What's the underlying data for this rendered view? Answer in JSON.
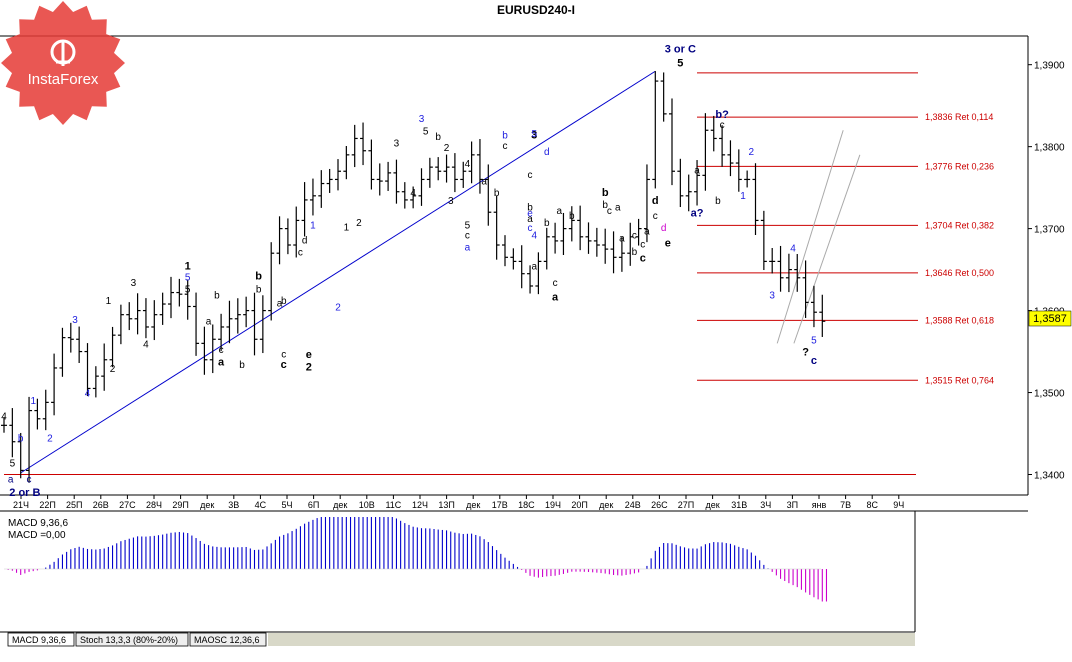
{
  "window": {
    "title": "EURUSD240-I"
  },
  "chart_data": [
    {
      "type": "candlestick",
      "title": "EURUSD240-I",
      "symbol": "EURUSD",
      "timeframe": "H4",
      "ylim": [
        1.3375,
        1.3935
      ],
      "y_ticks": [
        "1,3400",
        "1,3500",
        "1,3600",
        "1,3700",
        "1,3800",
        "1,3900"
      ],
      "x_ticks": [
        "21Ч",
        "22П",
        "25П",
        "26В",
        "27С",
        "28Ч",
        "29П",
        "дек",
        "3В",
        "4С",
        "5Ч",
        "6П",
        "дек",
        "10В",
        "11С",
        "12Ч",
        "13П",
        "дек",
        "17В",
        "18С",
        "19Ч",
        "20П",
        "дек",
        "24В",
        "26С",
        "27П",
        "дек",
        "31В",
        "3Ч",
        "3П",
        "янв",
        "7В",
        "8С",
        "9Ч"
      ],
      "last_price": "1,3587",
      "price_path": [
        [
          0,
          1.346
        ],
        [
          1,
          1.344
        ],
        [
          2,
          1.3405
        ],
        [
          3,
          1.3478
        ],
        [
          4,
          1.3468
        ],
        [
          5,
          1.3488
        ],
        [
          6,
          1.353
        ],
        [
          7,
          1.3567
        ],
        [
          8,
          1.3565
        ],
        [
          9,
          1.355
        ],
        [
          10,
          1.3505
        ],
        [
          11,
          1.352
        ],
        [
          12,
          1.354
        ],
        [
          13,
          1.357
        ],
        [
          14,
          1.3595
        ],
        [
          15,
          1.359
        ],
        [
          16,
          1.36
        ],
        [
          17,
          1.358
        ],
        [
          18,
          1.3595
        ],
        [
          19,
          1.3608
        ],
        [
          20,
          1.3622
        ],
        [
          21,
          1.362
        ],
        [
          22,
          1.3605
        ],
        [
          23,
          1.356
        ],
        [
          24,
          1.354
        ],
        [
          25,
          1.3565
        ],
        [
          26,
          1.358
        ],
        [
          27,
          1.359
        ],
        [
          28,
          1.3595
        ],
        [
          29,
          1.36
        ],
        [
          30,
          1.3565
        ],
        [
          31,
          1.36
        ],
        [
          32,
          1.367
        ],
        [
          33,
          1.37
        ],
        [
          34,
          1.368
        ],
        [
          35,
          1.371
        ],
        [
          36,
          1.3735
        ],
        [
          37,
          1.374
        ],
        [
          38,
          1.3755
        ],
        [
          39,
          1.376
        ],
        [
          40,
          1.377
        ],
        [
          41,
          1.379
        ],
        [
          42,
          1.381
        ],
        [
          43,
          1.3795
        ],
        [
          44,
          1.376
        ],
        [
          45,
          1.3758
        ],
        [
          46,
          1.3768
        ],
        [
          47,
          1.3745
        ],
        [
          48,
          1.3735
        ],
        [
          49,
          1.374
        ],
        [
          50,
          1.376
        ],
        [
          51,
          1.3775
        ],
        [
          52,
          1.377
        ],
        [
          53,
          1.3775
        ],
        [
          54,
          1.376
        ],
        [
          55,
          1.377
        ],
        [
          56,
          1.379
        ],
        [
          57,
          1.376
        ],
        [
          58,
          1.372
        ],
        [
          59,
          1.368
        ],
        [
          60,
          1.3665
        ],
        [
          61,
          1.366
        ],
        [
          62,
          1.3645
        ],
        [
          63,
          1.363
        ],
        [
          64,
          1.366
        ],
        [
          65,
          1.369
        ],
        [
          66,
          1.3685
        ],
        [
          67,
          1.37
        ],
        [
          68,
          1.371
        ],
        [
          69,
          1.369
        ],
        [
          70,
          1.3685
        ],
        [
          71,
          1.368
        ],
        [
          72,
          1.3675
        ],
        [
          73,
          1.3665
        ],
        [
          74,
          1.367
        ],
        [
          75,
          1.369
        ],
        [
          76,
          1.37
        ],
        [
          77,
          1.376
        ],
        [
          78,
          1.388
        ],
        [
          79,
          1.384
        ],
        [
          80,
          1.377
        ],
        [
          81,
          1.374
        ],
        [
          82,
          1.3745
        ],
        [
          83,
          1.3765
        ],
        [
          84,
          1.382
        ],
        [
          85,
          1.381
        ],
        [
          86,
          1.379
        ],
        [
          87,
          1.378
        ],
        [
          88,
          1.376
        ],
        [
          89,
          1.376
        ],
        [
          90,
          1.371
        ],
        [
          91,
          1.366
        ],
        [
          92,
          1.366
        ],
        [
          93,
          1.364
        ],
        [
          94,
          1.365
        ],
        [
          95,
          1.364
        ],
        [
          96,
          1.361
        ],
        [
          97,
          1.3598
        ],
        [
          98,
          1.3587
        ]
      ],
      "levels": [
        {
          "price": 1.3836,
          "label": "1,3836 Ret 0,114"
        },
        {
          "price": 1.3776,
          "label": "1,3776 Ret 0,236"
        },
        {
          "price": 1.3704,
          "label": "1,3704 Ret 0,382"
        },
        {
          "price": 1.3646,
          "label": "1,3646 Ret 0,500"
        },
        {
          "price": 1.3588,
          "label": "1,3588 Ret 0,618"
        },
        {
          "price": 1.3515,
          "label": "1,3515 Ret 0,764"
        }
      ],
      "support_level": 1.34,
      "top_level": 1.389,
      "trendline": [
        [
          2,
          1.3402
        ],
        [
          78,
          1.3892
        ]
      ],
      "channel_lines": [
        [
          [
            92.6,
            1.356
          ],
          [
            100.5,
            1.382
          ]
        ],
        [
          [
            94.6,
            1.356
          ],
          [
            102.5,
            1.379
          ]
        ]
      ],
      "wave_labels": [
        {
          "i": 0,
          "p": 1.3467,
          "t": "4",
          "c": "black"
        },
        {
          "i": 2,
          "p": 1.344,
          "t": "b",
          "c": "blue"
        },
        {
          "i": 1,
          "p": 1.341,
          "t": "5",
          "c": "black"
        },
        {
          "i": 0.8,
          "p": 1.339,
          "t": "a",
          "c": "navy"
        },
        {
          "i": 3,
          "p": 1.339,
          "t": "c",
          "c": "navy"
        },
        {
          "i": 2.5,
          "p": 1.3374,
          "t": "2 or B",
          "c": "navy",
          "bold": true
        },
        {
          "i": 3.5,
          "p": 1.3486,
          "t": "1",
          "c": "blue"
        },
        {
          "i": 5.5,
          "p": 1.344,
          "t": "2",
          "c": "blue"
        },
        {
          "i": 8.5,
          "p": 1.3585,
          "t": "3",
          "c": "blue"
        },
        {
          "i": 10,
          "p": 1.3495,
          "t": "4",
          "c": "blue"
        },
        {
          "i": 13,
          "p": 1.3525,
          "t": "2",
          "c": "black"
        },
        {
          "i": 12.5,
          "p": 1.3608,
          "t": "1",
          "c": "black"
        },
        {
          "i": 15.5,
          "p": 1.363,
          "t": "3",
          "c": "black"
        },
        {
          "i": 17,
          "p": 1.3555,
          "t": "4",
          "c": "black"
        },
        {
          "i": 22,
          "p": 1.365,
          "t": "1",
          "c": "black",
          "bold": true
        },
        {
          "i": 22,
          "p": 1.3637,
          "t": "5",
          "c": "blue"
        },
        {
          "i": 22,
          "p": 1.3622,
          "t": "5",
          "c": "black"
        },
        {
          "i": 25.5,
          "p": 1.3615,
          "t": "b",
          "c": "black"
        },
        {
          "i": 24.5,
          "p": 1.3583,
          "t": "a",
          "c": "black"
        },
        {
          "i": 26,
          "p": 1.3548,
          "t": "c",
          "c": "black"
        },
        {
          "i": 26,
          "p": 1.3533,
          "t": "a",
          "c": "black",
          "bold": true
        },
        {
          "i": 28.5,
          "p": 1.353,
          "t": "b",
          "c": "black"
        },
        {
          "i": 30.5,
          "p": 1.3638,
          "t": "b",
          "c": "black",
          "bold": true
        },
        {
          "i": 30.5,
          "p": 1.3622,
          "t": "b",
          "c": "black"
        },
        {
          "i": 33,
          "p": 1.3605,
          "t": "a",
          "c": "black"
        },
        {
          "i": 33.5,
          "p": 1.3608,
          "t": "b",
          "c": "black"
        },
        {
          "i": 33.5,
          "p": 1.3543,
          "t": "c",
          "c": "black"
        },
        {
          "i": 33.5,
          "p": 1.353,
          "t": "c",
          "c": "black",
          "bold": true
        },
        {
          "i": 36.5,
          "p": 1.3542,
          "t": "e",
          "c": "black",
          "bold": true
        },
        {
          "i": 36.5,
          "p": 1.3527,
          "t": "2",
          "c": "black",
          "bold": true
        },
        {
          "i": 35.5,
          "p": 1.3667,
          "t": "c",
          "c": "black"
        },
        {
          "i": 36,
          "p": 1.3682,
          "t": "d",
          "c": "black"
        },
        {
          "i": 37,
          "p": 1.37,
          "t": "1",
          "c": "blue"
        },
        {
          "i": 40,
          "p": 1.36,
          "t": "2",
          "c": "blue"
        },
        {
          "i": 41,
          "p": 1.3698,
          "t": "1",
          "c": "black"
        },
        {
          "i": 42.5,
          "p": 1.3703,
          "t": "2",
          "c": "black"
        },
        {
          "i": 47,
          "p": 1.38,
          "t": "3",
          "c": "black"
        },
        {
          "i": 50,
          "p": 1.383,
          "t": "3",
          "c": "blue"
        },
        {
          "i": 50.5,
          "p": 1.3815,
          "t": "5",
          "c": "black"
        },
        {
          "i": 52,
          "p": 1.3808,
          "t": "b",
          "c": "black"
        },
        {
          "i": 53,
          "p": 1.3795,
          "t": "2",
          "c": "black"
        },
        {
          "i": 49,
          "p": 1.374,
          "t": "4",
          "c": "black"
        },
        {
          "i": 55.5,
          "p": 1.3775,
          "t": "4",
          "c": "black"
        },
        {
          "i": 53.5,
          "p": 1.373,
          "t": "3",
          "c": "black"
        },
        {
          "i": 55.5,
          "p": 1.37,
          "t": "5",
          "c": "black"
        },
        {
          "i": 55.5,
          "p": 1.3688,
          "t": "c",
          "c": "black"
        },
        {
          "i": 55.5,
          "p": 1.3673,
          "t": "a",
          "c": "blue"
        },
        {
          "i": 57.5,
          "p": 1.3754,
          "t": "a",
          "c": "black"
        },
        {
          "i": 59,
          "p": 1.374,
          "t": "b",
          "c": "black"
        },
        {
          "i": 60,
          "p": 1.381,
          "t": "b",
          "c": "blue"
        },
        {
          "i": 60,
          "p": 1.3797,
          "t": "c",
          "c": "black"
        },
        {
          "i": 63.5,
          "p": 1.381,
          "t": "3",
          "c": "black",
          "bold": true
        },
        {
          "i": 63.5,
          "p": 1.3812,
          "t": "5",
          "c": "blue"
        },
        {
          "i": 65,
          "p": 1.379,
          "t": "d",
          "c": "blue"
        },
        {
          "i": 63,
          "p": 1.3762,
          "t": "c",
          "c": "black"
        },
        {
          "i": 63,
          "p": 1.3708,
          "t": "a",
          "c": "black"
        },
        {
          "i": 63,
          "p": 1.3722,
          "t": "b",
          "c": "black"
        },
        {
          "i": 63,
          "p": 1.3715,
          "t": "e",
          "c": "blue"
        },
        {
          "i": 63,
          "p": 1.3697,
          "t": "c",
          "c": "blue"
        },
        {
          "i": 63.5,
          "p": 1.3688,
          "t": "4",
          "c": "blue"
        },
        {
          "i": 63.5,
          "p": 1.365,
          "t": "a",
          "c": "black"
        },
        {
          "i": 66,
          "p": 1.363,
          "t": "c",
          "c": "black"
        },
        {
          "i": 66,
          "p": 1.3612,
          "t": "a",
          "c": "black",
          "bold": true
        },
        {
          "i": 65,
          "p": 1.3703,
          "t": "b",
          "c": "black"
        },
        {
          "i": 66.5,
          "p": 1.3718,
          "t": "a",
          "c": "black"
        },
        {
          "i": 68,
          "p": 1.3712,
          "t": "b",
          "c": "black"
        },
        {
          "i": 72,
          "p": 1.374,
          "t": "b",
          "c": "black",
          "bold": true
        },
        {
          "i": 72,
          "p": 1.3725,
          "t": "b",
          "c": "black"
        },
        {
          "i": 72.5,
          "p": 1.3718,
          "t": "c",
          "c": "black"
        },
        {
          "i": 73.5,
          "p": 1.3722,
          "t": "a",
          "c": "black"
        },
        {
          "i": 74,
          "p": 1.3684,
          "t": "a",
          "c": "black"
        },
        {
          "i": 75.5,
          "p": 1.3688,
          "t": "c",
          "c": "black"
        },
        {
          "i": 75.5,
          "p": 1.3668,
          "t": "b",
          "c": "black"
        },
        {
          "i": 76.5,
          "p": 1.3677,
          "t": "c",
          "c": "black"
        },
        {
          "i": 76.5,
          "p": 1.366,
          "t": "c",
          "c": "black",
          "bold": true
        },
        {
          "i": 77,
          "p": 1.3693,
          "t": "a",
          "c": "black"
        },
        {
          "i": 78,
          "p": 1.373,
          "t": "d",
          "c": "black",
          "bold": true
        },
        {
          "i": 78,
          "p": 1.3712,
          "t": "c",
          "c": "black"
        },
        {
          "i": 79,
          "p": 1.3697,
          "t": "d",
          "c": "magenta"
        },
        {
          "i": 79.5,
          "p": 1.3678,
          "t": "e",
          "c": "black",
          "bold": true
        },
        {
          "i": 81,
          "p": 1.3915,
          "t": "3 or C",
          "c": "navy",
          "bold": true
        },
        {
          "i": 81,
          "p": 1.3898,
          "t": "5",
          "c": "black",
          "bold": true
        },
        {
          "i": 83,
          "p": 1.3767,
          "t": "a",
          "c": "black"
        },
        {
          "i": 83,
          "p": 1.3715,
          "t": "a?",
          "c": "navy",
          "bold": true
        },
        {
          "i": 85.5,
          "p": 1.373,
          "t": "b",
          "c": "black"
        },
        {
          "i": 86,
          "p": 1.3835,
          "t": "b?",
          "c": "navy",
          "bold": true
        },
        {
          "i": 86,
          "p": 1.3823,
          "t": "c",
          "c": "black"
        },
        {
          "i": 89.5,
          "p": 1.379,
          "t": "2",
          "c": "blue"
        },
        {
          "i": 88.5,
          "p": 1.3736,
          "t": "1",
          "c": "blue"
        },
        {
          "i": 92,
          "p": 1.3615,
          "t": "3",
          "c": "blue"
        },
        {
          "i": 94.5,
          "p": 1.3672,
          "t": "4",
          "c": "blue"
        },
        {
          "i": 97,
          "p": 1.356,
          "t": "5",
          "c": "blue"
        },
        {
          "i": 96,
          "p": 1.3545,
          "t": "?",
          "c": "black",
          "bold": true
        },
        {
          "i": 97,
          "p": 1.3535,
          "t": "c",
          "c": "navy",
          "bold": true
        }
      ]
    },
    {
      "type": "bar",
      "name": "MACD",
      "title": "MACD 9,36,6",
      "params": "9,36,6",
      "legend": [
        "MACD 9,36,6",
        "MACD =0,00"
      ],
      "colors": {
        "main": "#0000cc",
        "signal": "#cc00cc"
      },
      "values_range": [
        -1.0,
        0.5
      ],
      "x_ticks": "same as price chart"
    }
  ],
  "indicator_tabs": [
    {
      "label": "MACD 9,36,6",
      "active": true
    },
    {
      "label": "Stoch 13,3,3 (80%-20%)",
      "active": false
    },
    {
      "label": "MAOSC 12,36,6",
      "active": false
    }
  ],
  "logo": {
    "text": "InstaForex"
  },
  "colors": {
    "level_line": "#cc0000",
    "level_text": "#cc0000",
    "trendline": "#0000cc",
    "last_price_bg": "#ffff00",
    "macd_up": "#0000cc",
    "macd_down": "#cc00cc",
    "logo_red": "#e53935"
  }
}
